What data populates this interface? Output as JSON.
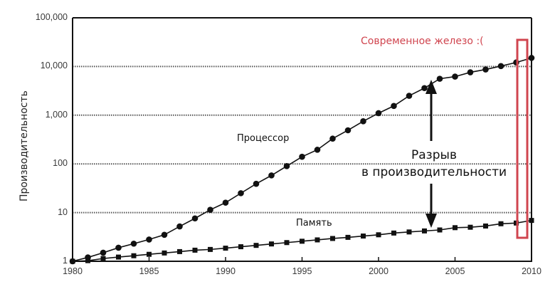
{
  "chart": {
    "y_axis_title": "Производительность",
    "y_ticks": [
      "100,000",
      "10,000",
      "1,000",
      "100",
      "10",
      "1"
    ],
    "x_ticks": [
      "1980",
      "1985",
      "1990",
      "1995",
      "2000",
      "2005",
      "2010"
    ],
    "labels": {
      "processor": "Процессор",
      "memory": "Память",
      "gap_line1": "Разрыв",
      "gap_line2": "в производительности",
      "modern_hardware": "Современное железо :("
    },
    "colors": {
      "line": "#111111",
      "grid": "#555555",
      "highlight": "#d0454f"
    }
  },
  "chart_data": {
    "type": "line",
    "title": "",
    "xlabel": "",
    "ylabel": "Производительность",
    "yscale": "log",
    "ylim": [
      1,
      100000
    ],
    "xlim": [
      1980,
      2010
    ],
    "grid": "horizontal dotted at 10, 100, 1000, 10000",
    "x": [
      1980,
      1981,
      1982,
      1983,
      1984,
      1985,
      1986,
      1987,
      1988,
      1989,
      1990,
      1991,
      1992,
      1993,
      1994,
      1995,
      1996,
      1997,
      1998,
      1999,
      2000,
      2001,
      2002,
      2003,
      2004,
      2005,
      2006,
      2007,
      2008,
      2009,
      2010
    ],
    "series": [
      {
        "name": "Процессор",
        "marker": "circle",
        "values": [
          1,
          1.2,
          1.5,
          1.9,
          2.3,
          2.8,
          3.5,
          5.2,
          7.6,
          11.4,
          16,
          25,
          39,
          58,
          90,
          140,
          195,
          330,
          490,
          750,
          1100,
          1550,
          2500,
          3600,
          5600,
          6200,
          7600,
          8700,
          10200,
          12100,
          15000
        ]
      },
      {
        "name": "Память",
        "marker": "square",
        "values": [
          1,
          1.03,
          1.14,
          1.22,
          1.3,
          1.39,
          1.48,
          1.58,
          1.69,
          1.75,
          1.86,
          1.99,
          2.12,
          2.27,
          2.42,
          2.58,
          2.75,
          2.94,
          3.1,
          3.3,
          3.5,
          3.8,
          4.0,
          4.2,
          4.4,
          4.9,
          5.0,
          5.3,
          5.9,
          6.1,
          6.9
        ]
      }
    ],
    "annotations": [
      "Процессор",
      "Память",
      "Разрыв в производительности (double arrow between series near 2003)",
      "Современное железо :( (red box highlighting ~2009)"
    ]
  }
}
